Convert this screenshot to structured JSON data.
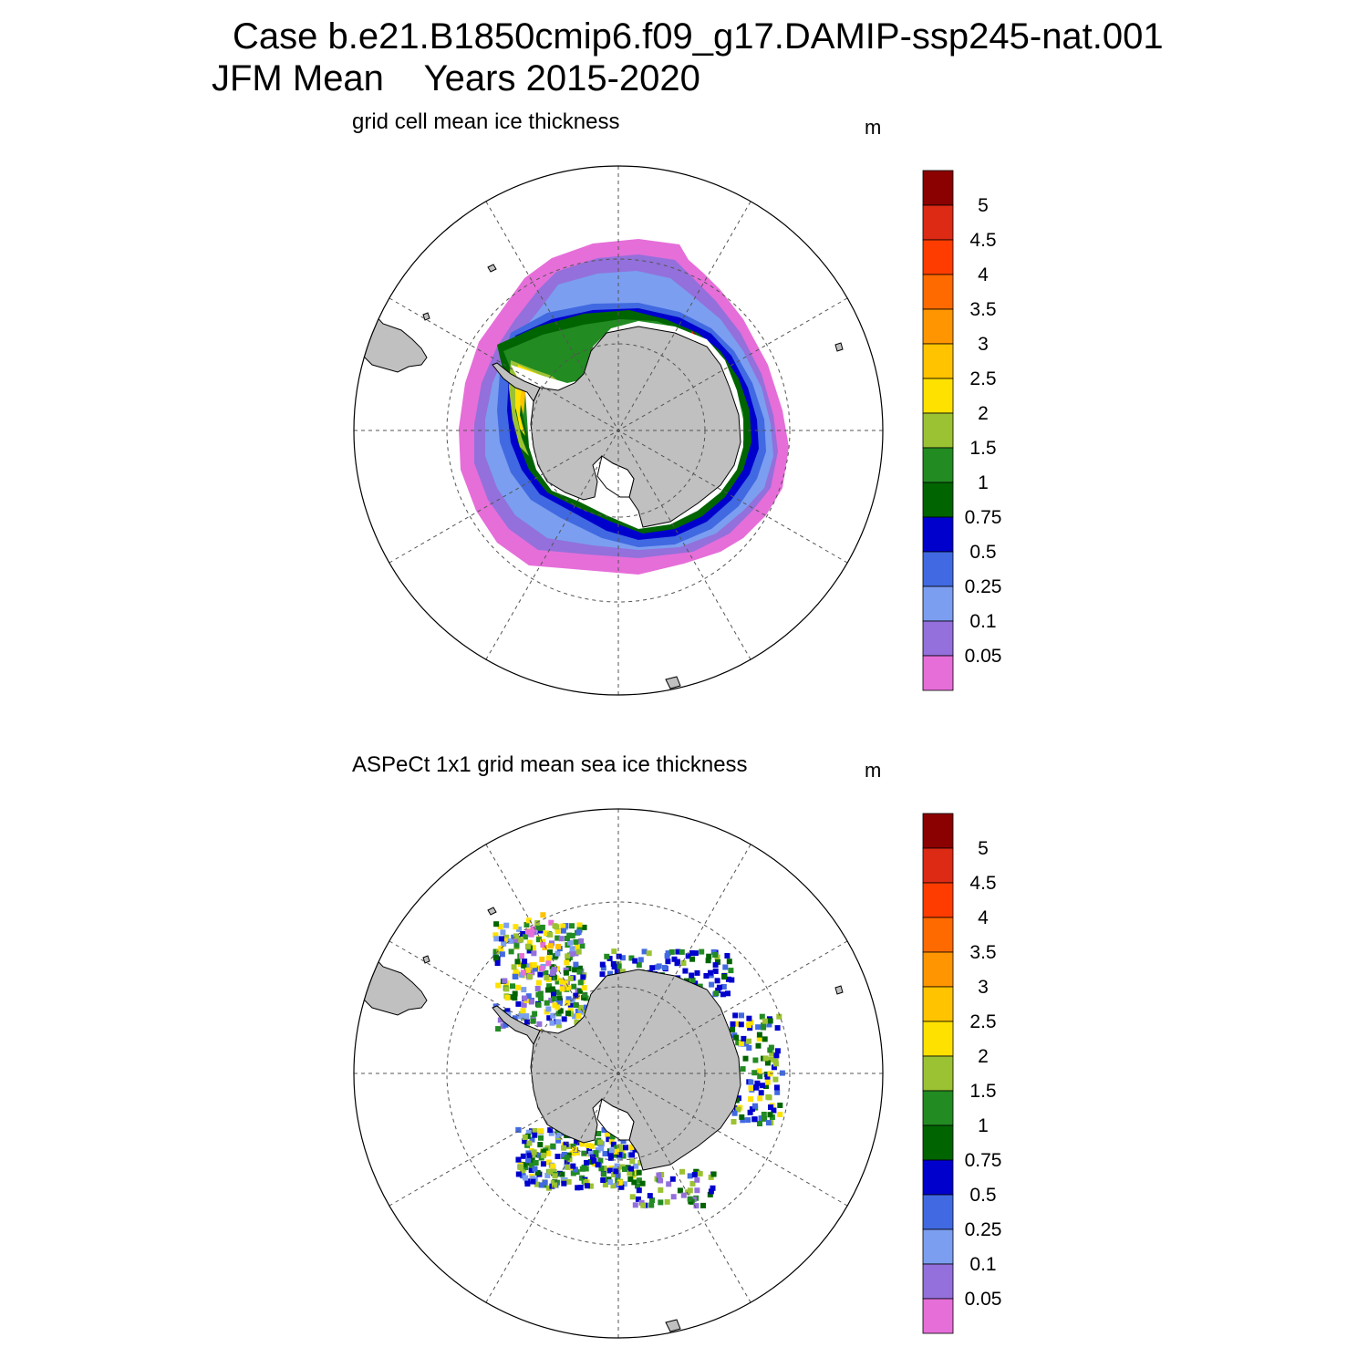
{
  "header": {
    "title_line1": "Case b.e21.B1850cmip6.f09_g17.DAMIP-ssp245-nat.001",
    "title_line2": "JFM Mean    Years 2015-2020"
  },
  "colors": {
    "land": "#c0c0c0",
    "coast": "#000000",
    "graticule": "#555555"
  },
  "colorbar": {
    "units": "m",
    "tick_labels": [
      "5",
      "4.5",
      "4",
      "3.5",
      "3",
      "2.5",
      "2",
      "1.5",
      "1",
      "0.75",
      "0.5",
      "0.25",
      "0.1",
      "0.05"
    ],
    "bin_colors_top_to_bottom": [
      "#8b0000",
      "#dc2a14",
      "#ff3c00",
      "#ff6a00",
      "#ff9500",
      "#ffc300",
      "#ffe100",
      "#9bc232",
      "#228b22",
      "#006400",
      "#0000cd",
      "#4169e1",
      "#7b9ef0",
      "#9370db",
      "#e66ed9"
    ]
  },
  "panels": [
    {
      "subtitle": "grid cell mean ice thickness",
      "units": "m",
      "field": "model"
    },
    {
      "subtitle": "ASPeCt 1x1 grid mean sea ice thickness",
      "units": "m",
      "field": "observations"
    }
  ],
  "chart_data": {
    "type": "heatmap",
    "projection": "south polar stereographic",
    "levels_m": [
      0.05,
      0.1,
      0.25,
      0.5,
      0.75,
      1,
      1.5,
      2,
      2.5,
      3,
      3.5,
      4,
      4.5,
      5
    ],
    "panel_top": "model sea ice thickness, mostly 0.05-0.75 m around Antarctica, 1-2.5 m in the Weddell Sea",
    "panel_bottom": "sparse ship-based observations, 0.5-2.5 m"
  }
}
